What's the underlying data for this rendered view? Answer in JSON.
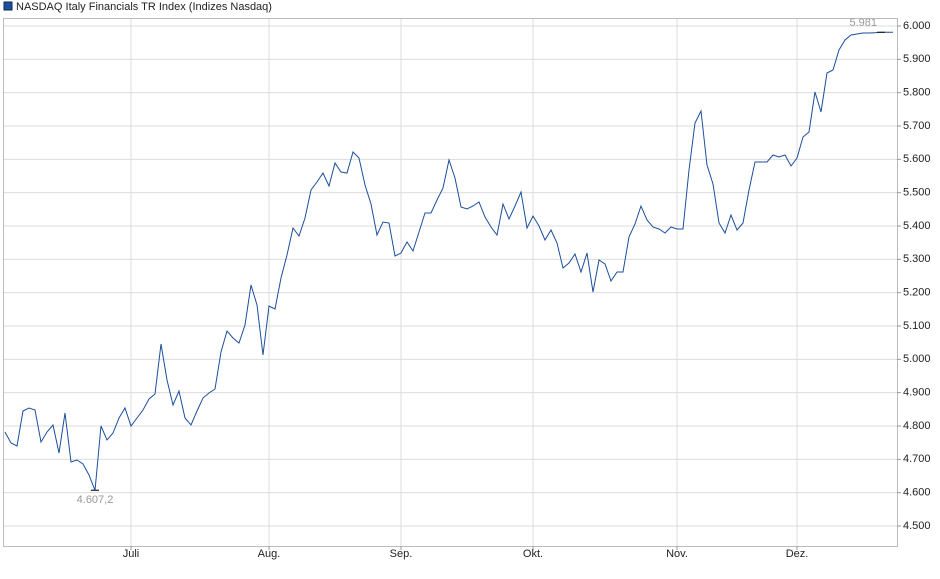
{
  "chart_data": {
    "type": "line",
    "title": "NASDAQ Italy Financials TR Index  (Indizes Nasdaq)",
    "color": "#1c4f9c",
    "categories": [
      null,
      null,
      null,
      null,
      null,
      null,
      null,
      null,
      null,
      null,
      null,
      null,
      null,
      null,
      null,
      null,
      null,
      null,
      null,
      null,
      null,
      "Juli",
      null,
      null,
      null,
      null,
      null,
      null,
      null,
      null,
      null,
      null,
      null,
      null,
      null,
      null,
      null,
      null,
      null,
      null,
      null,
      null,
      null,
      null,
      "Aug.",
      null,
      null,
      null,
      null,
      null,
      null,
      null,
      null,
      null,
      null,
      null,
      null,
      null,
      null,
      null,
      null,
      null,
      null,
      null,
      null,
      null,
      "Sep.",
      null,
      null,
      null,
      null,
      null,
      null,
      null,
      null,
      null,
      null,
      null,
      null,
      null,
      null,
      null,
      null,
      null,
      null,
      null,
      null,
      null,
      "Okt.",
      null,
      null,
      null,
      null,
      null,
      null,
      null,
      null,
      null,
      null,
      null,
      null,
      null,
      null,
      null,
      null,
      null,
      null,
      null,
      null,
      null,
      null,
      null,
      "Nov.",
      null,
      null,
      null,
      null,
      null,
      null,
      null,
      null,
      null,
      null,
      null,
      null,
      null,
      null,
      null,
      null,
      null,
      null,
      null,
      "Dez.",
      null,
      null,
      null,
      null,
      null,
      null,
      null,
      null,
      null,
      null,
      null,
      null,
      null,
      null,
      null,
      null
    ],
    "values": [
      4782,
      4749,
      4740,
      4845,
      4854,
      4848,
      4752,
      4782,
      4803,
      4719,
      4839,
      4692,
      4698,
      4686,
      4653,
      4607.2,
      4800,
      4758,
      4779,
      4824,
      4854,
      4800,
      4824,
      4848,
      4881,
      4896,
      5046,
      4938,
      4863,
      4905,
      4824,
      4803,
      4845,
      4884,
      4899,
      4911,
      5022,
      5085,
      5064,
      5049,
      5103,
      5223,
      5163,
      5013,
      5160,
      5151,
      5244,
      5313,
      5394,
      5370,
      5424,
      5508,
      5532,
      5559,
      5520,
      5589,
      5562,
      5559,
      5622,
      5604,
      5523,
      5466,
      5373,
      5412,
      5409,
      5310,
      5319,
      5352,
      5325,
      5382,
      5439,
      5439,
      5478,
      5514,
      5598,
      5544,
      5457,
      5451,
      5460,
      5472,
      5427,
      5397,
      5373,
      5466,
      5421,
      5460,
      5502,
      5394,
      5430,
      5400,
      5358,
      5388,
      5349,
      5274,
      5289,
      5316,
      5262,
      5319,
      5202,
      5298,
      5286,
      5235,
      5262,
      5262,
      5367,
      5406,
      5460,
      5418,
      5397,
      5391,
      5379,
      5397,
      5391,
      5391,
      5568,
      5709,
      5745,
      5583,
      5526,
      5409,
      5379,
      5433,
      5388,
      5409,
      5508,
      5592,
      5592,
      5592,
      5613,
      5607,
      5613,
      5580,
      5604,
      5667,
      5682,
      5802,
      5742,
      5859,
      5868,
      5928,
      5958,
      5973,
      5976,
      5979,
      5979,
      5980,
      5981,
      5981,
      5981
    ],
    "value_labels": [
      null,
      null,
      null,
      null,
      null,
      null,
      null,
      null,
      null,
      null,
      null,
      null,
      null,
      null,
      null,
      "4.607,2",
      null,
      null,
      null,
      null,
      null,
      null,
      null,
      null,
      null,
      null,
      null,
      null,
      null,
      null,
      null,
      null,
      null,
      null,
      null,
      null,
      null,
      null,
      null,
      null,
      null,
      null,
      null,
      null,
      null,
      null,
      null,
      null,
      null,
      null,
      null,
      null,
      null,
      null,
      null,
      null,
      null,
      null,
      null,
      null,
      null,
      null,
      null,
      null,
      null,
      null,
      null,
      null,
      null,
      null,
      null,
      null,
      null,
      null,
      null,
      null,
      null,
      null,
      null,
      null,
      null,
      null,
      null,
      null,
      null,
      null,
      null,
      null,
      null,
      null,
      null,
      null,
      null,
      null,
      null,
      null,
      null,
      null,
      null,
      null,
      null,
      null,
      null,
      null,
      null,
      null,
      null,
      null,
      null,
      null,
      null,
      null,
      null,
      null,
      null,
      null,
      null,
      null,
      null,
      null,
      null,
      null,
      null,
      null,
      null,
      null,
      null,
      null,
      null,
      null,
      null,
      null,
      null,
      null,
      null,
      null,
      null,
      null,
      null,
      null,
      null,
      null,
      null,
      null,
      null,
      null,
      "5.981",
      null,
      null
    ],
    "ylim": [
      4440,
      6024
    ],
    "yticks": [
      {
        "value": 4500,
        "label": "4.500"
      },
      {
        "value": 4600,
        "label": "4.600"
      },
      {
        "value": 4700,
        "label": "4.700"
      },
      {
        "value": 4800,
        "label": "4.800"
      },
      {
        "value": 4900,
        "label": "4.900"
      },
      {
        "value": 5000,
        "label": "5.000"
      },
      {
        "value": 5100,
        "label": "5.100"
      },
      {
        "value": 5200,
        "label": "5.200"
      },
      {
        "value": 5300,
        "label": "5.300"
      },
      {
        "value": 5400,
        "label": "5.400"
      },
      {
        "value": 5500,
        "label": "5.500"
      },
      {
        "value": 5600,
        "label": "5.600"
      },
      {
        "value": 5700,
        "label": "5.700"
      },
      {
        "value": 5800,
        "label": "5.800"
      },
      {
        "value": 5900,
        "label": "5.900"
      },
      {
        "value": 6000,
        "label": "6.000"
      }
    ],
    "grid": true
  }
}
